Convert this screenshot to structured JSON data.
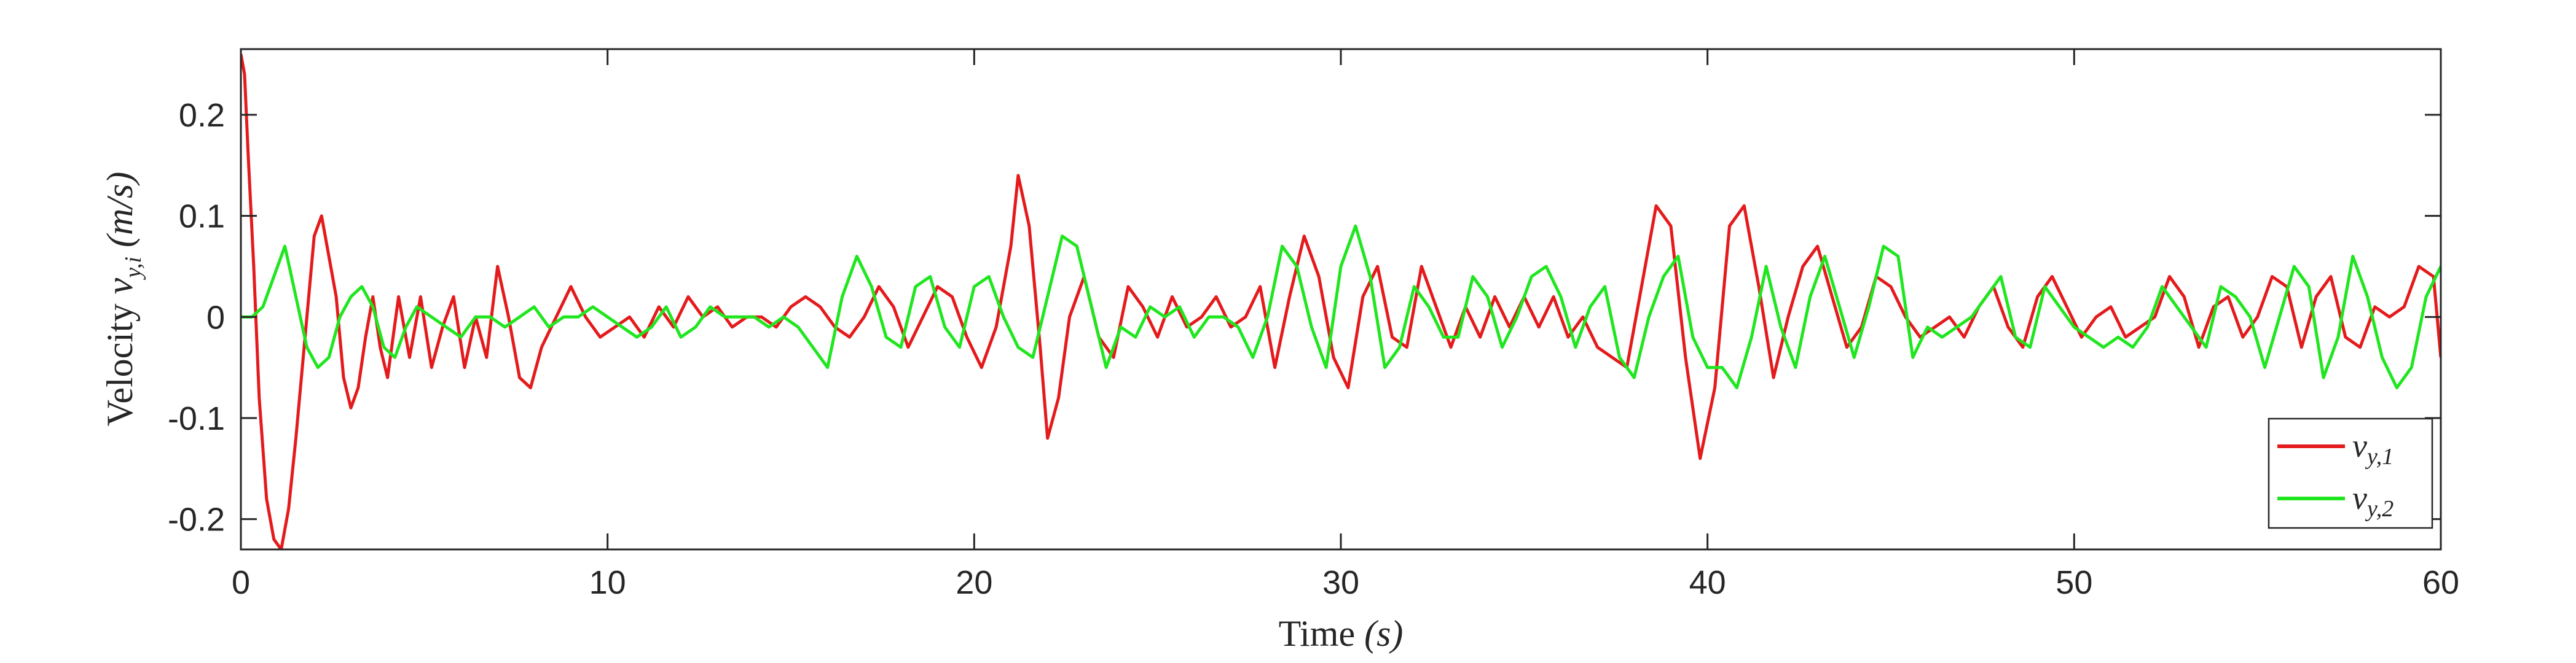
{
  "chart_data": {
    "type": "line",
    "xlabel": "Time",
    "xlabel_unit": "(s)",
    "ylabel": "Velocity",
    "ylabel_symbol": "v",
    "ylabel_subscript": "y,i",
    "ylabel_unit": "(m/s)",
    "xlim": [
      0,
      60
    ],
    "ylim": [
      -0.23,
      0.265
    ],
    "xticks": [
      0,
      10,
      20,
      30,
      40,
      50,
      60
    ],
    "yticks": [
      -0.2,
      -0.1,
      0,
      0.1,
      0.2
    ],
    "ytick_labels": [
      "-0.2",
      "-0.1",
      "0",
      "0.1",
      "0.2"
    ],
    "grid": false,
    "legend_position": "bottom-right",
    "series": [
      {
        "name_symbol": "v",
        "name_subscript": "y,1",
        "color": "#e41a1c",
        "x": [
          0,
          0.1,
          0.2,
          0.35,
          0.5,
          0.7,
          0.9,
          1.1,
          1.3,
          1.5,
          1.8,
          2.0,
          2.2,
          2.4,
          2.6,
          2.8,
          3.0,
          3.2,
          3.4,
          3.6,
          3.8,
          4.0,
          4.3,
          4.6,
          4.9,
          5.2,
          5.5,
          5.8,
          6.1,
          6.4,
          6.7,
          7.0,
          7.3,
          7.6,
          7.9,
          8.2,
          8.6,
          9.0,
          9.4,
          9.8,
          10.2,
          10.6,
          11.0,
          11.4,
          11.8,
          12.2,
          12.6,
          13.0,
          13.4,
          13.8,
          14.2,
          14.6,
          15.0,
          15.4,
          15.8,
          16.2,
          16.6,
          17.0,
          17.4,
          17.8,
          18.2,
          18.6,
          19.0,
          19.4,
          19.8,
          20.2,
          20.6,
          21.0,
          21.2,
          21.5,
          21.8,
          22.0,
          22.3,
          22.6,
          23.0,
          23.4,
          23.8,
          24.2,
          24.6,
          25.0,
          25.4,
          25.8,
          26.2,
          26.6,
          27.0,
          27.4,
          27.8,
          28.2,
          28.6,
          29.0,
          29.4,
          29.8,
          30.2,
          30.6,
          31.0,
          31.4,
          31.8,
          32.2,
          32.6,
          33.0,
          33.4,
          33.8,
          34.2,
          34.6,
          35.0,
          35.4,
          35.8,
          36.2,
          36.6,
          37.0,
          37.4,
          37.8,
          38.2,
          38.6,
          39.0,
          39.4,
          39.8,
          40.2,
          40.6,
          41.0,
          41.4,
          41.8,
          42.2,
          42.6,
          43.0,
          43.4,
          43.8,
          44.2,
          44.6,
          45.0,
          45.4,
          45.8,
          46.2,
          46.6,
          47.0,
          47.4,
          47.8,
          48.2,
          48.6,
          49.0,
          49.4,
          49.8,
          50.2,
          50.6,
          51.0,
          51.4,
          51.8,
          52.2,
          52.6,
          53.0,
          53.4,
          53.8,
          54.2,
          54.6,
          55.0,
          55.4,
          55.8,
          56.2,
          56.6,
          57.0,
          57.4,
          57.8,
          58.2,
          58.6,
          59.0,
          59.4,
          59.8,
          60.0
        ],
        "y": [
          0.26,
          0.24,
          0.16,
          0.05,
          -0.08,
          -0.18,
          -0.22,
          -0.23,
          -0.19,
          -0.12,
          0.0,
          0.08,
          0.1,
          0.06,
          0.02,
          -0.06,
          -0.09,
          -0.07,
          -0.02,
          0.02,
          -0.03,
          -0.06,
          0.02,
          -0.04,
          0.02,
          -0.05,
          -0.01,
          0.02,
          -0.05,
          0.0,
          -0.04,
          0.05,
          0.0,
          -0.06,
          -0.07,
          -0.03,
          0.0,
          0.03,
          0.0,
          -0.02,
          -0.01,
          0.0,
          -0.02,
          0.01,
          -0.01,
          0.02,
          0.0,
          0.01,
          -0.01,
          0.0,
          0.0,
          -0.01,
          0.01,
          0.02,
          0.01,
          -0.01,
          -0.02,
          0.0,
          0.03,
          0.01,
          -0.03,
          0.0,
          0.03,
          0.02,
          -0.02,
          -0.05,
          -0.01,
          0.07,
          0.14,
          0.09,
          -0.03,
          -0.12,
          -0.08,
          0.0,
          0.04,
          -0.02,
          -0.04,
          0.03,
          0.01,
          -0.02,
          0.02,
          -0.01,
          0.0,
          0.02,
          -0.01,
          0.0,
          0.03,
          -0.05,
          0.02,
          0.08,
          0.04,
          -0.04,
          -0.07,
          0.02,
          0.05,
          -0.02,
          -0.03,
          0.05,
          0.01,
          -0.03,
          0.01,
          -0.02,
          0.02,
          -0.01,
          0.02,
          -0.01,
          0.02,
          -0.02,
          0.0,
          -0.03,
          -0.04,
          -0.05,
          0.03,
          0.11,
          0.09,
          -0.04,
          -0.14,
          -0.07,
          0.09,
          0.11,
          0.03,
          -0.06,
          0.0,
          0.05,
          0.07,
          0.02,
          -0.03,
          -0.01,
          0.04,
          0.03,
          0.0,
          -0.02,
          -0.01,
          0.0,
          -0.02,
          0.01,
          0.03,
          -0.01,
          -0.03,
          0.02,
          0.04,
          0.01,
          -0.02,
          0.0,
          0.01,
          -0.02,
          -0.01,
          0.0,
          0.04,
          0.02,
          -0.03,
          0.01,
          0.02,
          -0.02,
          0.0,
          0.04,
          0.03,
          -0.03,
          0.02,
          0.04,
          -0.02,
          -0.03,
          0.01,
          0.0,
          0.01,
          0.05,
          0.04,
          -0.04
        ]
      },
      {
        "name_symbol": "v",
        "name_subscript": "y,2",
        "color": "#1fe61f",
        "x": [
          0,
          0.3,
          0.6,
          0.9,
          1.2,
          1.5,
          1.8,
          2.1,
          2.4,
          2.7,
          3.0,
          3.3,
          3.6,
          3.9,
          4.2,
          4.5,
          4.8,
          5.2,
          5.6,
          6.0,
          6.4,
          6.8,
          7.2,
          7.6,
          8.0,
          8.4,
          8.8,
          9.2,
          9.6,
          10.0,
          10.4,
          10.8,
          11.2,
          11.6,
          12.0,
          12.4,
          12.8,
          13.2,
          13.6,
          14.0,
          14.4,
          14.8,
          15.2,
          15.6,
          16.0,
          16.4,
          16.8,
          17.2,
          17.6,
          18.0,
          18.4,
          18.8,
          19.2,
          19.6,
          20.0,
          20.4,
          20.8,
          21.2,
          21.6,
          22.0,
          22.4,
          22.8,
          23.2,
          23.6,
          24.0,
          24.4,
          24.8,
          25.2,
          25.6,
          26.0,
          26.4,
          26.8,
          27.2,
          27.6,
          28.0,
          28.4,
          28.8,
          29.2,
          29.6,
          30.0,
          30.4,
          30.8,
          31.2,
          31.6,
          32.0,
          32.4,
          32.8,
          33.2,
          33.6,
          34.0,
          34.4,
          34.8,
          35.2,
          35.6,
          36.0,
          36.4,
          36.8,
          37.2,
          37.6,
          38.0,
          38.4,
          38.8,
          39.2,
          39.6,
          40.0,
          40.4,
          40.8,
          41.2,
          41.6,
          42.0,
          42.4,
          42.8,
          43.2,
          43.6,
          44.0,
          44.4,
          44.8,
          45.2,
          45.6,
          46.0,
          46.4,
          46.8,
          47.2,
          47.6,
          48.0,
          48.4,
          48.8,
          49.2,
          49.6,
          50.0,
          50.4,
          50.8,
          51.2,
          51.6,
          52.0,
          52.4,
          52.8,
          53.2,
          53.6,
          54.0,
          54.4,
          54.8,
          55.2,
          55.6,
          56.0,
          56.4,
          56.8,
          57.2,
          57.6,
          58.0,
          58.4,
          58.8,
          59.2,
          59.6,
          60.0
        ],
        "y": [
          0.0,
          0.0,
          0.01,
          0.04,
          0.07,
          0.02,
          -0.03,
          -0.05,
          -0.04,
          0.0,
          0.02,
          0.03,
          0.01,
          -0.03,
          -0.04,
          -0.01,
          0.01,
          0.0,
          -0.01,
          -0.02,
          0.0,
          0.0,
          -0.01,
          0.0,
          0.01,
          -0.01,
          0.0,
          0.0,
          0.01,
          0.0,
          -0.01,
          -0.02,
          -0.01,
          0.01,
          -0.02,
          -0.01,
          0.01,
          0.0,
          0.0,
          0.0,
          -0.01,
          0.0,
          -0.01,
          -0.03,
          -0.05,
          0.02,
          0.06,
          0.03,
          -0.02,
          -0.03,
          0.03,
          0.04,
          -0.01,
          -0.03,
          0.03,
          0.04,
          0.0,
          -0.03,
          -0.04,
          0.02,
          0.08,
          0.07,
          0.01,
          -0.05,
          -0.01,
          -0.02,
          0.01,
          0.0,
          0.01,
          -0.02,
          0.0,
          0.0,
          -0.01,
          -0.04,
          0.0,
          0.07,
          0.05,
          -0.01,
          -0.05,
          0.05,
          0.09,
          0.04,
          -0.05,
          -0.03,
          0.03,
          0.01,
          -0.02,
          -0.02,
          0.04,
          0.02,
          -0.03,
          0.0,
          0.04,
          0.05,
          0.02,
          -0.03,
          0.01,
          0.03,
          -0.04,
          -0.06,
          0.0,
          0.04,
          0.06,
          -0.02,
          -0.05,
          -0.05,
          -0.07,
          -0.02,
          0.05,
          -0.01,
          -0.05,
          0.02,
          0.06,
          0.01,
          -0.04,
          0.01,
          0.07,
          0.06,
          -0.04,
          -0.01,
          -0.02,
          -0.01,
          0.0,
          0.02,
          0.04,
          -0.02,
          -0.03,
          0.03,
          0.01,
          -0.01,
          -0.02,
          -0.03,
          -0.02,
          -0.03,
          -0.01,
          0.03,
          0.01,
          -0.01,
          -0.03,
          0.03,
          0.02,
          0.0,
          -0.05,
          0.0,
          0.05,
          0.03,
          -0.06,
          -0.02,
          0.06,
          0.02,
          -0.04,
          -0.07,
          -0.05,
          0.02,
          0.05
        ]
      }
    ]
  }
}
